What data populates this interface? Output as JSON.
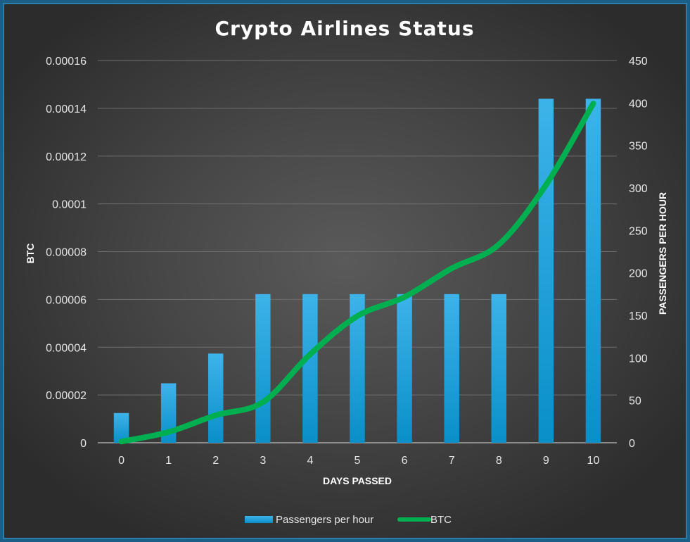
{
  "chart_data": {
    "type": "bar+line",
    "title": "Crypto Airlines Status",
    "xlabel": "DAYS PASSED",
    "ylabel_left": "BTC",
    "ylabel_right": "PASSENGERS PER HOUR",
    "categories": [
      "0",
      "1",
      "2",
      "3",
      "4",
      "5",
      "6",
      "7",
      "8",
      "9",
      "10"
    ],
    "left_axis": {
      "min": 0,
      "max": 0.00016,
      "step": 2e-05,
      "tick_labels": [
        "0",
        "0.00002",
        "0.00004",
        "0.00006",
        "0.00008",
        "0.0001",
        "0.00012",
        "0.00014",
        "0.00016"
      ]
    },
    "right_axis": {
      "min": 0,
      "max": 450,
      "step": 50,
      "tick_labels": [
        "0",
        "50",
        "100",
        "150",
        "200",
        "250",
        "300",
        "350",
        "400",
        "450"
      ]
    },
    "series": [
      {
        "name": "Passengers per hour",
        "type": "bar",
        "axis": "right",
        "color": "#1aa3e0",
        "values": [
          35,
          70,
          105,
          175,
          175,
          175,
          175,
          175,
          175,
          405,
          405
        ]
      },
      {
        "name": "BTC",
        "type": "line",
        "axis": "left",
        "color": "#00b050",
        "values": [
          5e-07,
          4.5e-06,
          1.15e-05,
          1.7e-05,
          3.7e-05,
          5.3e-05,
          6.1e-05,
          7.3e-05,
          8.3e-05,
          0.000108,
          0.000142
        ]
      }
    ],
    "grid": true,
    "legend": "bottom-center"
  }
}
